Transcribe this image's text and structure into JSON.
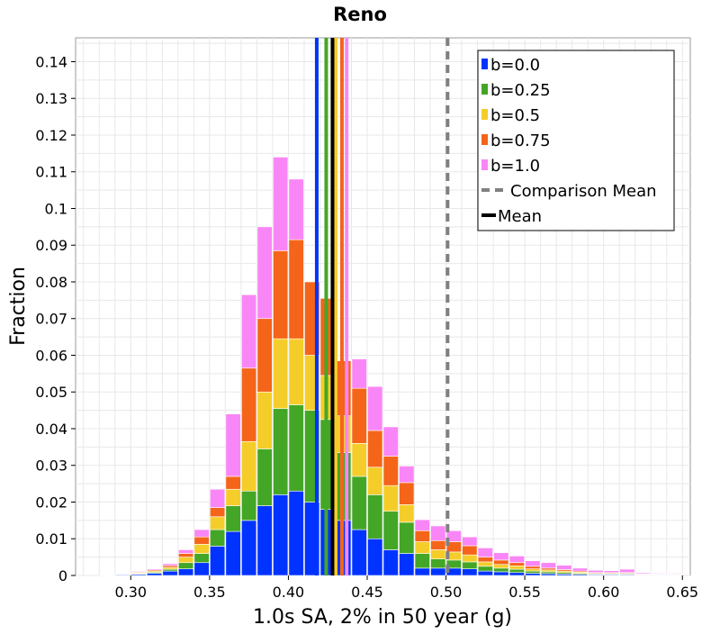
{
  "chart_data": {
    "type": "bar",
    "title": "Reno",
    "xlabel": "1.0s SA, 2% in 50 year (g)",
    "ylabel": "Fraction",
    "xlim": [
      0.265,
      0.655
    ],
    "ylim": [
      0,
      0.1465
    ],
    "stacked": true,
    "grid": true,
    "legend_position": "top-right",
    "bin_width": 0.01,
    "x_ticks": [
      0.3,
      0.35,
      0.4,
      0.45,
      0.5,
      0.55,
      0.6,
      0.65
    ],
    "x_tick_labels": [
      "0.30",
      "0.35",
      "0.40",
      "0.45",
      "0.50",
      "0.55",
      "0.60",
      "0.65"
    ],
    "y_ticks": [
      0,
      0.01,
      0.02,
      0.03,
      0.04,
      0.05,
      0.06,
      0.07,
      0.08,
      0.09,
      0.1,
      0.11,
      0.12,
      0.13,
      0.14
    ],
    "y_tick_labels": [
      "0",
      "0.01",
      "0.02",
      "0.03",
      "0.04",
      "0.05",
      "0.06",
      "0.07",
      "0.08",
      "0.09",
      "0.1",
      "0.11",
      "0.12",
      "0.13",
      "0.14"
    ],
    "x": [
      0.285,
      0.295,
      0.305,
      0.315,
      0.325,
      0.335,
      0.345,
      0.355,
      0.365,
      0.375,
      0.385,
      0.395,
      0.405,
      0.415,
      0.425,
      0.435,
      0.445,
      0.455,
      0.465,
      0.475,
      0.485,
      0.495,
      0.505,
      0.515,
      0.525,
      0.535,
      0.545,
      0.555,
      0.565,
      0.575,
      0.585,
      0.595,
      0.605,
      0.615,
      0.625,
      0.635,
      0.645
    ],
    "series": [
      {
        "name": "b=0.0",
        "color": "#0033ff",
        "values": [
          0.0001,
          0.0002,
          0.0003,
          0.0006,
          0.0012,
          0.0018,
          0.0035,
          0.008,
          0.012,
          0.015,
          0.019,
          0.022,
          0.023,
          0.02,
          0.018,
          0.015,
          0.0125,
          0.01,
          0.007,
          0.006,
          0.002,
          0.002,
          0.002,
          0.0018,
          0.0012,
          0.001,
          0.0008,
          0.0006,
          0.0005,
          0.0004,
          0.0003,
          0.0002,
          0.0002,
          0.0002,
          0.0001,
          0.0001,
          0.0001
        ]
      },
      {
        "name": "b=0.25",
        "color": "#44a626",
        "values": [
          5e-05,
          0.0001,
          0.0002,
          0.0003,
          0.0005,
          0.0017,
          0.0025,
          0.0045,
          0.007,
          0.008,
          0.0155,
          0.0235,
          0.0235,
          0.025,
          0.0245,
          0.0185,
          0.0145,
          0.012,
          0.0105,
          0.0085,
          0.004,
          0.0025,
          0.0022,
          0.0019,
          0.0013,
          0.001,
          0.0009,
          0.0006,
          0.0005,
          0.0004,
          0.0003,
          0.0002,
          0.0002,
          0.0002,
          0.0001,
          0.0001,
          0.0001
        ]
      },
      {
        "name": "b=0.5",
        "color": "#f4cd2a",
        "values": [
          5e-05,
          0.0001,
          0.0002,
          0.0003,
          0.0005,
          0.0015,
          0.0025,
          0.0035,
          0.0045,
          0.0135,
          0.0155,
          0.019,
          0.018,
          0.015,
          0.012,
          0.01,
          0.009,
          0.0075,
          0.007,
          0.0048,
          0.0032,
          0.0025,
          0.0022,
          0.0019,
          0.0012,
          0.001,
          0.0009,
          0.0006,
          0.0005,
          0.0004,
          0.0003,
          0.0002,
          0.0002,
          0.0002,
          0.0001,
          0.0001,
          0.0001
        ]
      },
      {
        "name": "b=0.75",
        "color": "#f4651a",
        "values": [
          5e-05,
          0.0001,
          0.0002,
          0.0003,
          0.0005,
          0.001,
          0.002,
          0.0025,
          0.0035,
          0.02,
          0.02,
          0.024,
          0.027,
          0.02,
          0.021,
          0.015,
          0.015,
          0.01,
          0.008,
          0.006,
          0.003,
          0.0025,
          0.0028,
          0.0025,
          0.0013,
          0.0012,
          0.0009,
          0.0007,
          0.0005,
          0.0004,
          0.0003,
          0.0002,
          0.0002,
          0.0002,
          0.0001,
          0.0001,
          0.0001
        ]
      },
      {
        "name": "b=1.0",
        "color": "#f986f7",
        "values": [
          5e-05,
          0.0001,
          0.0002,
          0.0003,
          0.0005,
          0.001,
          0.002,
          0.005,
          0.017,
          0.02,
          0.025,
          0.0255,
          0.0165,
          0.0,
          0.0,
          0.0,
          0.008,
          0.012,
          0.008,
          0.0045,
          0.003,
          0.004,
          0.003,
          0.0024,
          0.0025,
          0.002,
          0.0018,
          0.0015,
          0.0015,
          0.0012,
          0.0008,
          0.0006,
          0.0005,
          0.0009,
          0.0003,
          0.0002,
          0.0002
        ]
      }
    ],
    "reference_lines": [
      {
        "name": "b=0.0",
        "color": "#0033ff",
        "x": 0.418,
        "style": "solid"
      },
      {
        "name": "b=0.25",
        "color": "#44a626",
        "x": 0.424,
        "style": "solid"
      },
      {
        "name": "b=0.5",
        "color": "#f4cd2a",
        "x": 0.43,
        "style": "solid"
      },
      {
        "name": "b=0.75",
        "color": "#f4651a",
        "x": 0.434,
        "style": "solid"
      },
      {
        "name": "b=1.0",
        "color": "#f986f7",
        "x": 0.437,
        "style": "solid"
      },
      {
        "name": "Mean",
        "color": "#000000",
        "x": 0.428,
        "style": "solid"
      },
      {
        "name": "Comparison Mean",
        "color": "#808080",
        "x": 0.501,
        "style": "dashed"
      }
    ],
    "legend": [
      {
        "label": "b=0.0",
        "color": "#0033ff",
        "kind": "box"
      },
      {
        "label": "b=0.25",
        "color": "#44a626",
        "kind": "box"
      },
      {
        "label": "b=0.5",
        "color": "#f4cd2a",
        "kind": "box"
      },
      {
        "label": "b=0.75",
        "color": "#f4651a",
        "kind": "box"
      },
      {
        "label": "b=1.0",
        "color": "#f986f7",
        "kind": "box"
      },
      {
        "label": "Comparison Mean",
        "color": "#808080",
        "kind": "dashed"
      },
      {
        "label": "Mean",
        "color": "#000000",
        "kind": "line"
      }
    ]
  }
}
